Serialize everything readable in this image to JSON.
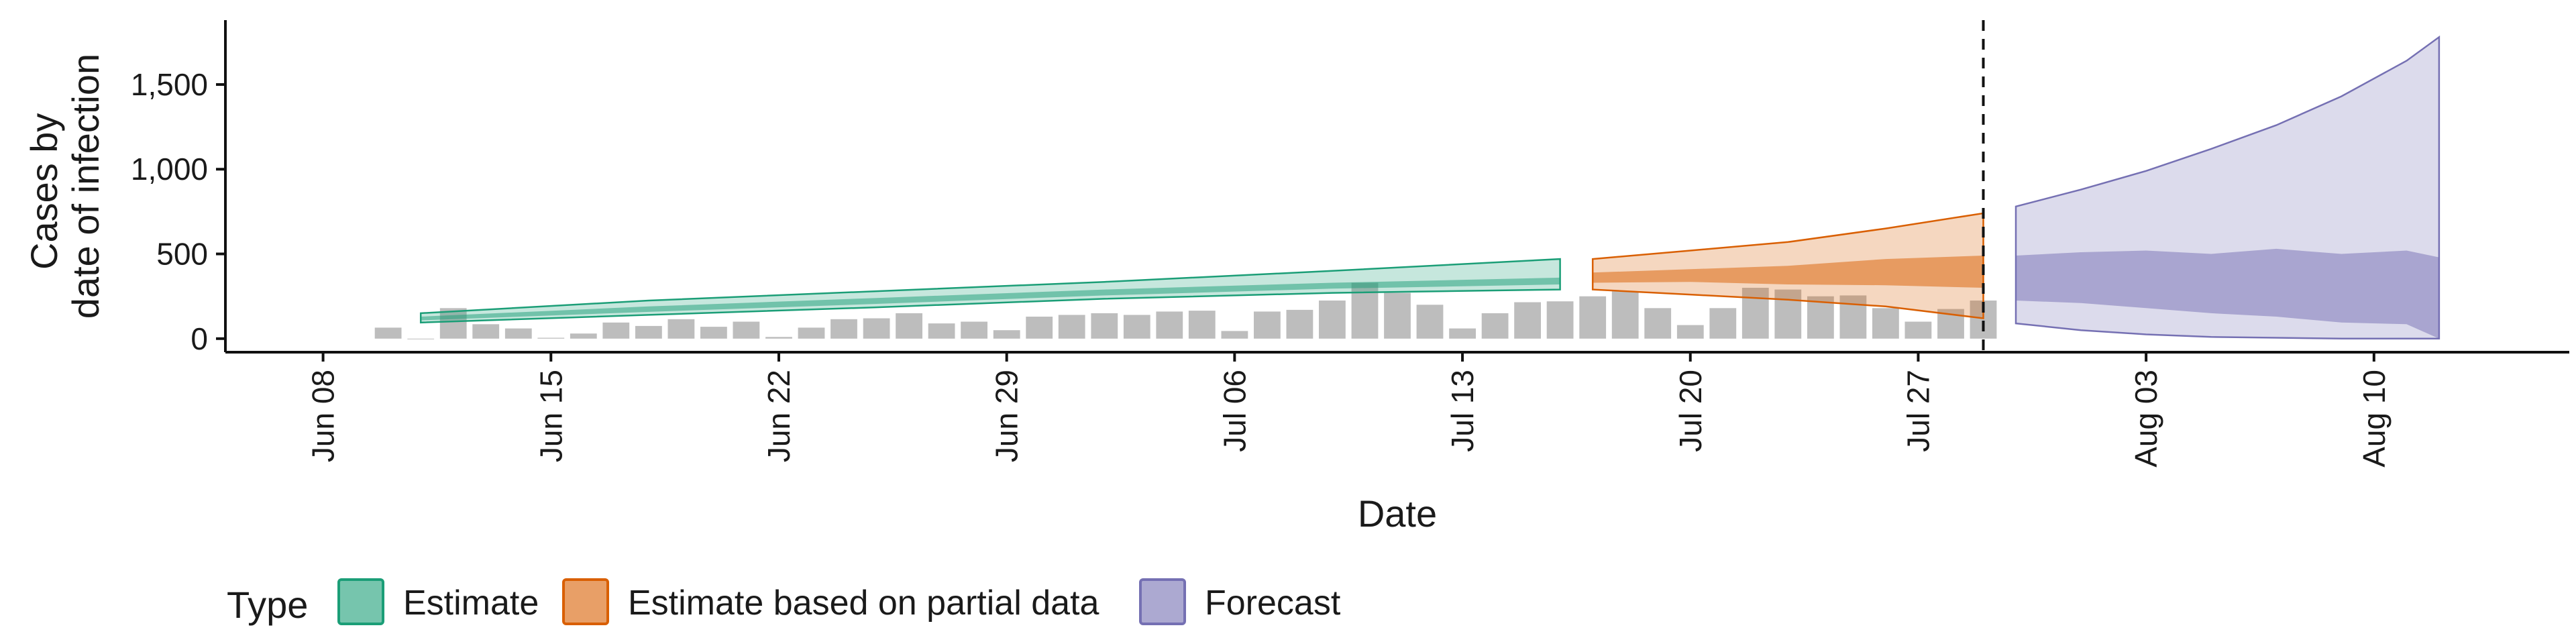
{
  "chart_data": {
    "type": "area",
    "xlabel": "Date",
    "ylabel_lines": [
      "Cases by",
      "date of infection"
    ],
    "ylim": [
      -80,
      1880
    ],
    "grid": false,
    "legend_placement": "bottom-left",
    "legend_title": "Type",
    "date_range": [
      "2020-06-05",
      "2020-08-16"
    ],
    "x_ticks": [
      {
        "date": "2020-06-08",
        "label": "Jun 08"
      },
      {
        "date": "2020-06-15",
        "label": "Jun 15"
      },
      {
        "date": "2020-06-22",
        "label": "Jun 22"
      },
      {
        "date": "2020-06-29",
        "label": "Jun 29"
      },
      {
        "date": "2020-07-06",
        "label": "Jul 06"
      },
      {
        "date": "2020-07-13",
        "label": "Jul 13"
      },
      {
        "date": "2020-07-20",
        "label": "Jul 20"
      },
      {
        "date": "2020-07-27",
        "label": "Jul 27"
      },
      {
        "date": "2020-08-03",
        "label": "Aug 03"
      },
      {
        "date": "2020-08-10",
        "label": "Aug 10"
      }
    ],
    "y_ticks": [
      {
        "value": 0,
        "label": "0"
      },
      {
        "value": 500,
        "label": "500"
      },
      {
        "value": 1000,
        "label": "1,000"
      },
      {
        "value": 1500,
        "label": "1,500"
      }
    ],
    "vline_date": "2020-07-29",
    "reported_cases": {
      "dates": [
        "2020-06-10",
        "2020-06-11",
        "2020-06-12",
        "2020-06-13",
        "2020-06-14",
        "2020-06-15",
        "2020-06-16",
        "2020-06-17",
        "2020-06-18",
        "2020-06-19",
        "2020-06-20",
        "2020-06-21",
        "2020-06-22",
        "2020-06-23",
        "2020-06-24",
        "2020-06-25",
        "2020-06-26",
        "2020-06-27",
        "2020-06-28",
        "2020-06-29",
        "2020-06-30",
        "2020-07-01",
        "2020-07-02",
        "2020-07-03",
        "2020-07-04",
        "2020-07-05",
        "2020-07-06",
        "2020-07-07",
        "2020-07-08",
        "2020-07-09",
        "2020-07-10",
        "2020-07-11",
        "2020-07-12",
        "2020-07-13",
        "2020-07-14",
        "2020-07-15",
        "2020-07-16",
        "2020-07-17",
        "2020-07-18",
        "2020-07-19",
        "2020-07-20",
        "2020-07-21",
        "2020-07-22",
        "2020-07-23",
        "2020-07-24",
        "2020-07-25",
        "2020-07-26",
        "2020-07-27",
        "2020-07-28",
        "2020-07-29"
      ],
      "values": [
        65,
        0,
        180,
        85,
        60,
        5,
        30,
        95,
        75,
        115,
        70,
        100,
        10,
        65,
        115,
        120,
        150,
        90,
        100,
        50,
        130,
        140,
        150,
        140,
        160,
        165,
        45,
        160,
        170,
        225,
        330,
        270,
        200,
        60,
        150,
        215,
        220,
        250,
        280,
        180,
        80,
        180,
        300,
        290,
        250,
        255,
        180,
        100,
        175,
        225
      ]
    },
    "series": [
      {
        "name": "Estimate",
        "color": "#1b9e77",
        "dates": [
          "2020-06-11",
          "2020-06-18",
          "2020-06-25",
          "2020-07-02",
          "2020-07-09",
          "2020-07-16"
        ],
        "lower90": [
          95,
          140,
          185,
          235,
          270,
          290
        ],
        "lower50": [
          108,
          158,
          205,
          255,
          295,
          320
        ],
        "upper50": [
          130,
          190,
          240,
          290,
          330,
          360
        ],
        "upper90": [
          150,
          225,
          280,
          335,
          400,
          470
        ]
      },
      {
        "name": "Estimate based on partial data",
        "color": "#d95f02",
        "dates": [
          "2020-07-17",
          "2020-07-20",
          "2020-07-23",
          "2020-07-26",
          "2020-07-29"
        ],
        "lower90": [
          290,
          260,
          230,
          190,
          120
        ],
        "lower50": [
          330,
          335,
          320,
          315,
          300
        ],
        "upper50": [
          390,
          410,
          430,
          470,
          490
        ],
        "upper90": [
          470,
          520,
          570,
          650,
          740
        ]
      },
      {
        "name": "Forecast",
        "color": "#7570b3",
        "dates": [
          "2020-07-30",
          "2020-08-01",
          "2020-08-03",
          "2020-08-05",
          "2020-08-07",
          "2020-08-09",
          "2020-08-11",
          "2020-08-12"
        ],
        "lower90": [
          90,
          50,
          25,
          10,
          5,
          0,
          0,
          0
        ],
        "lower50": [
          225,
          210,
          180,
          150,
          130,
          95,
          85,
          0
        ],
        "upper50": [
          490,
          510,
          520,
          500,
          530,
          500,
          520,
          480
        ],
        "upper90": [
          780,
          880,
          990,
          1120,
          1260,
          1430,
          1640,
          1780
        ]
      }
    ]
  }
}
